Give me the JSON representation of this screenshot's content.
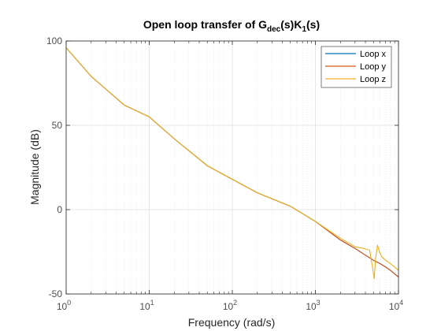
{
  "chart_data": {
    "type": "line",
    "title_main": "Open loop transfer of G",
    "title_sub1": "dec",
    "title_mid": "(s)K",
    "title_sub2": "1",
    "title_end": "(s)",
    "xlabel": "Frequency  (rad/s)",
    "ylabel": "Magnitude (dB)",
    "x_scale": "log",
    "xlim": [
      1,
      10000
    ],
    "ylim": [
      -50,
      100
    ],
    "x_ticks": [
      {
        "value": 1,
        "base": "10",
        "exp": "0"
      },
      {
        "value": 10,
        "base": "10",
        "exp": "1"
      },
      {
        "value": 100,
        "base": "10",
        "exp": "2"
      },
      {
        "value": 1000,
        "base": "10",
        "exp": "3"
      },
      {
        "value": 10000,
        "base": "10",
        "exp": "4"
      }
    ],
    "y_ticks": [
      {
        "value": 100,
        "label": "100"
      },
      {
        "value": 50,
        "label": "50"
      },
      {
        "value": 0,
        "label": "0"
      },
      {
        "value": -50,
        "label": "-50"
      }
    ],
    "grid": true,
    "minor_grid_x": true,
    "legend_position": "top-right",
    "series": [
      {
        "name": "Loop x",
        "color": "#0072BD",
        "x": [
          1,
          2,
          5,
          10,
          20,
          50,
          100,
          200,
          500,
          1000,
          2000,
          3000,
          4000,
          5000,
          6000,
          7000,
          8000,
          10000
        ],
        "y": [
          96,
          79,
          62,
          55,
          42,
          26,
          18,
          10,
          2,
          -7,
          -18,
          -23,
          -27,
          -30,
          -32,
          -34,
          -36,
          -40
        ]
      },
      {
        "name": "Loop y",
        "color": "#D95319",
        "x": [
          1,
          2,
          5,
          10,
          20,
          50,
          100,
          200,
          500,
          1000,
          2000,
          3000,
          4000,
          5000,
          6000,
          7000,
          8000,
          10000
        ],
        "y": [
          96,
          79,
          62,
          55,
          42,
          26,
          18,
          10,
          2,
          -7,
          -18,
          -23,
          -27,
          -30,
          -32,
          -34,
          -36,
          -40
        ]
      },
      {
        "name": "Loop z",
        "color": "#EDB120",
        "x": [
          1,
          2,
          5,
          10,
          20,
          50,
          100,
          200,
          500,
          1000,
          2000,
          3000,
          3800,
          4500,
          4900,
          5100,
          5300,
          5600,
          5900,
          6300,
          7000,
          8000,
          10000
        ],
        "y": [
          96,
          79,
          62,
          55,
          42,
          26,
          18,
          10,
          2,
          -7,
          -17,
          -22,
          -23,
          -24,
          -35,
          -41,
          -29,
          -21,
          -25,
          -28,
          -30,
          -32,
          -36
        ]
      }
    ]
  }
}
